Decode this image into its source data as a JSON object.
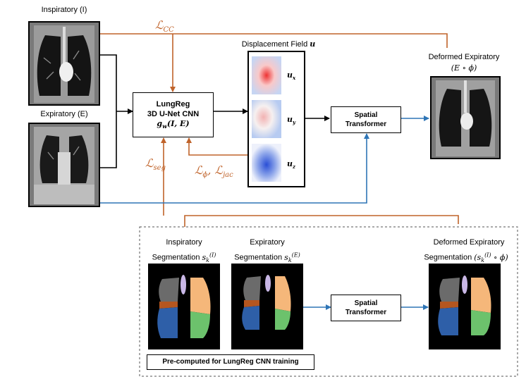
{
  "diagram": {
    "inspiratory_label": "Inspiratory (I)",
    "expiratory_label": "Expiratory (E)",
    "loss_cc": "ℒCC",
    "loss_seg": "ℒseg",
    "loss_phi_jac": "ℒϕ, ℒjac",
    "displacement_title": "Displacement Field u",
    "u_x": "ux",
    "u_y": "uy",
    "u_z": "uz",
    "lungreg_line1": "LungReg",
    "lungreg_line2": "3D U-Net CNN",
    "lungreg_line3": "gw(I, E)",
    "spatial_transformer_line1": "Spatial",
    "spatial_transformer_line2": "Transformer",
    "deformed_expiratory_title": "Deformed Expiratory",
    "deformed_expiratory_formula": "(E ∘ ϕ)",
    "insp_seg_line1": "Inspiratory",
    "insp_seg_line2": "Segmentation s_k^(I)",
    "exp_seg_line1": "Expiratory",
    "exp_seg_line2": "Segmentation s_k^(E)",
    "deformed_seg_line1": "Deformed Expiratory",
    "deformed_seg_line2": "Segmentation (s_k^(I) ∘ ϕ)",
    "precomputed_label": "Pre-computed for LungReg CNN training"
  },
  "colors": {
    "orange_arrow": "#c0632a",
    "blue_arrow": "#2e75b6",
    "black": "#000000",
    "lobe_gray": "#6b6b6b",
    "lobe_brown": "#b5561f",
    "lobe_blue": "#2e5fa8",
    "lobe_peach": "#f5b77a",
    "lobe_green": "#6cc26c",
    "trachea_lavender": "#c9b7e6"
  }
}
